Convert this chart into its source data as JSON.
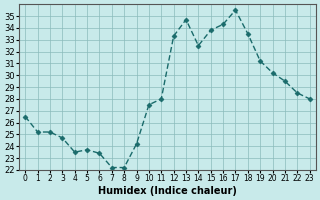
{
  "x": [
    0,
    1,
    2,
    3,
    4,
    5,
    6,
    7,
    8,
    9,
    10,
    11,
    12,
    13,
    14,
    15,
    16,
    17,
    18,
    19,
    20,
    21,
    22,
    23
  ],
  "y": [
    26.5,
    25.2,
    25.2,
    24.7,
    23.5,
    23.7,
    23.4,
    22.2,
    22.2,
    24.2,
    27.5,
    28.0,
    33.3,
    34.7,
    32.5,
    33.8,
    34.3,
    35.5,
    33.5,
    31.2,
    30.2,
    29.5,
    28.5,
    28.0
  ],
  "xlabel": "Humidex (Indice chaleur)",
  "bg_color": "#c8eaea",
  "grid_color": "#8bbcbc",
  "line_color": "#1a6b6b",
  "marker_color": "#1a6b6b",
  "ylim": [
    22,
    36
  ],
  "xlim": [
    -0.5,
    23.5
  ],
  "yticks": [
    22,
    23,
    24,
    25,
    26,
    27,
    28,
    29,
    30,
    31,
    32,
    33,
    34,
    35
  ],
  "xticks": [
    0,
    1,
    2,
    3,
    4,
    5,
    6,
    7,
    8,
    9,
    10,
    11,
    12,
    13,
    14,
    15,
    16,
    17,
    18,
    19,
    20,
    21,
    22,
    23
  ]
}
